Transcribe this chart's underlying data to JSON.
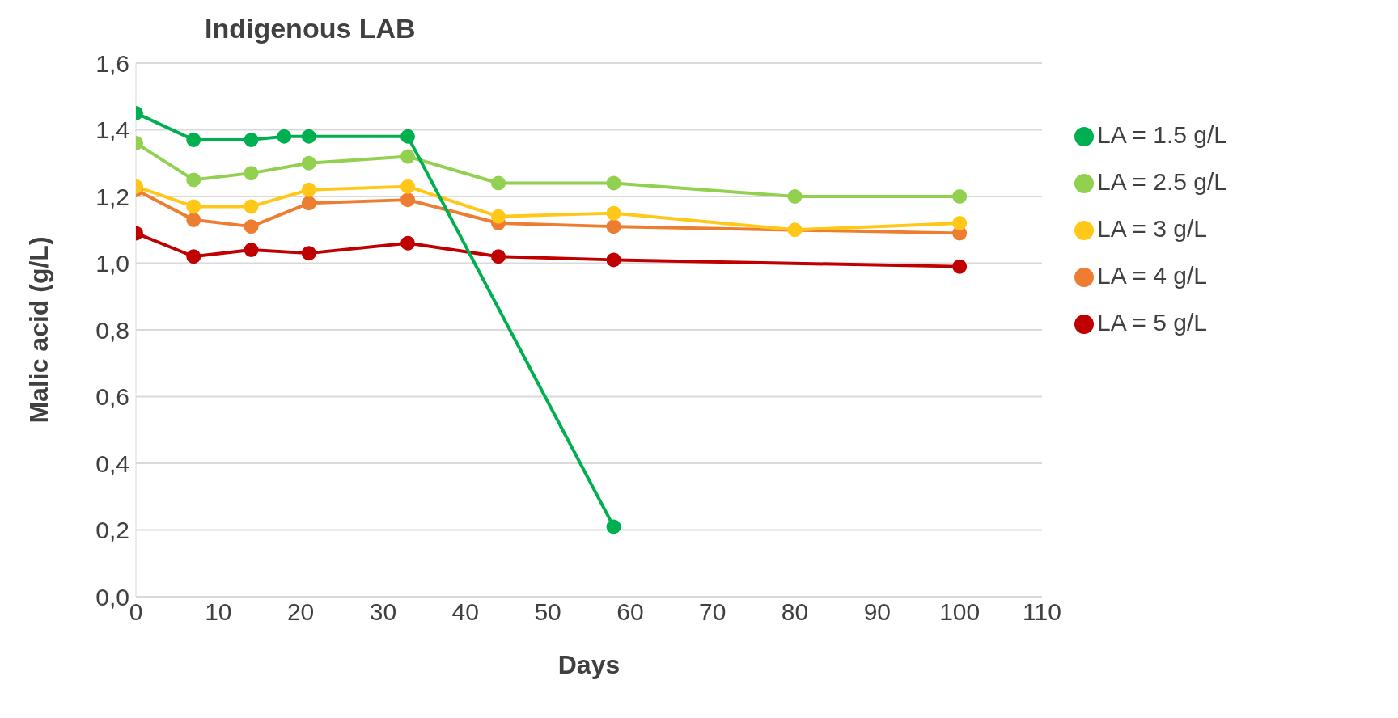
{
  "chart_data": {
    "type": "line",
    "title": "Indigenous LAB",
    "xlabel": "Days",
    "ylabel": "Malic acid (g/L)",
    "xlim": [
      0,
      110
    ],
    "xticks": [
      0,
      10,
      20,
      30,
      40,
      50,
      60,
      70,
      80,
      90,
      100,
      110
    ],
    "ylim": [
      0,
      1.6
    ],
    "yticks": [
      {
        "value": 0,
        "label": "0,0"
      },
      {
        "value": 0.2,
        "label": "0,2"
      },
      {
        "value": 0.4,
        "label": "0,4"
      },
      {
        "value": 0.6,
        "label": "0,6"
      },
      {
        "value": 0.8,
        "label": "0,8"
      },
      {
        "value": 1.0,
        "label": "1,0"
      },
      {
        "value": 1.2,
        "label": "1,2"
      },
      {
        "value": 1.4,
        "label": "1,4"
      },
      {
        "value": 1.6,
        "label": "1,6"
      }
    ],
    "grid": "y",
    "legend": "right",
    "marker": "circle",
    "line_style": "solid",
    "series": [
      {
        "name": "LA = 1.5 g/L",
        "color": "#00b050",
        "x": [
          0,
          7,
          14,
          18,
          21,
          33,
          58
        ],
        "values": [
          1.45,
          1.37,
          1.37,
          1.38,
          1.38,
          1.38,
          0.21
        ]
      },
      {
        "name": "LA = 2.5 g/L",
        "color": "#92d050",
        "x": [
          0,
          7,
          14,
          21,
          33,
          44,
          58,
          80,
          100
        ],
        "values": [
          1.36,
          1.25,
          1.27,
          1.3,
          1.32,
          1.24,
          1.24,
          1.2,
          1.2
        ]
      },
      {
        "name": "LA = 3 g/L",
        "color": "#ffc819",
        "x": [
          0,
          7,
          14,
          21,
          33,
          44,
          58,
          80,
          100
        ],
        "values": [
          1.23,
          1.17,
          1.17,
          1.22,
          1.23,
          1.14,
          1.15,
          1.1,
          1.12
        ]
      },
      {
        "name": "LA = 4 g/L",
        "color": "#ed7d31",
        "x": [
          0,
          7,
          14,
          21,
          33,
          44,
          58,
          80,
          100
        ],
        "values": [
          1.22,
          1.13,
          1.11,
          1.18,
          1.19,
          1.12,
          1.11,
          null,
          1.09
        ]
      },
      {
        "name": "LA = 5 g/L",
        "color": "#c00000",
        "x": [
          0,
          7,
          14,
          21,
          33,
          44,
          58,
          100
        ],
        "values": [
          1.09,
          1.02,
          1.04,
          1.03,
          1.06,
          1.02,
          1.01,
          0.99
        ]
      }
    ]
  }
}
